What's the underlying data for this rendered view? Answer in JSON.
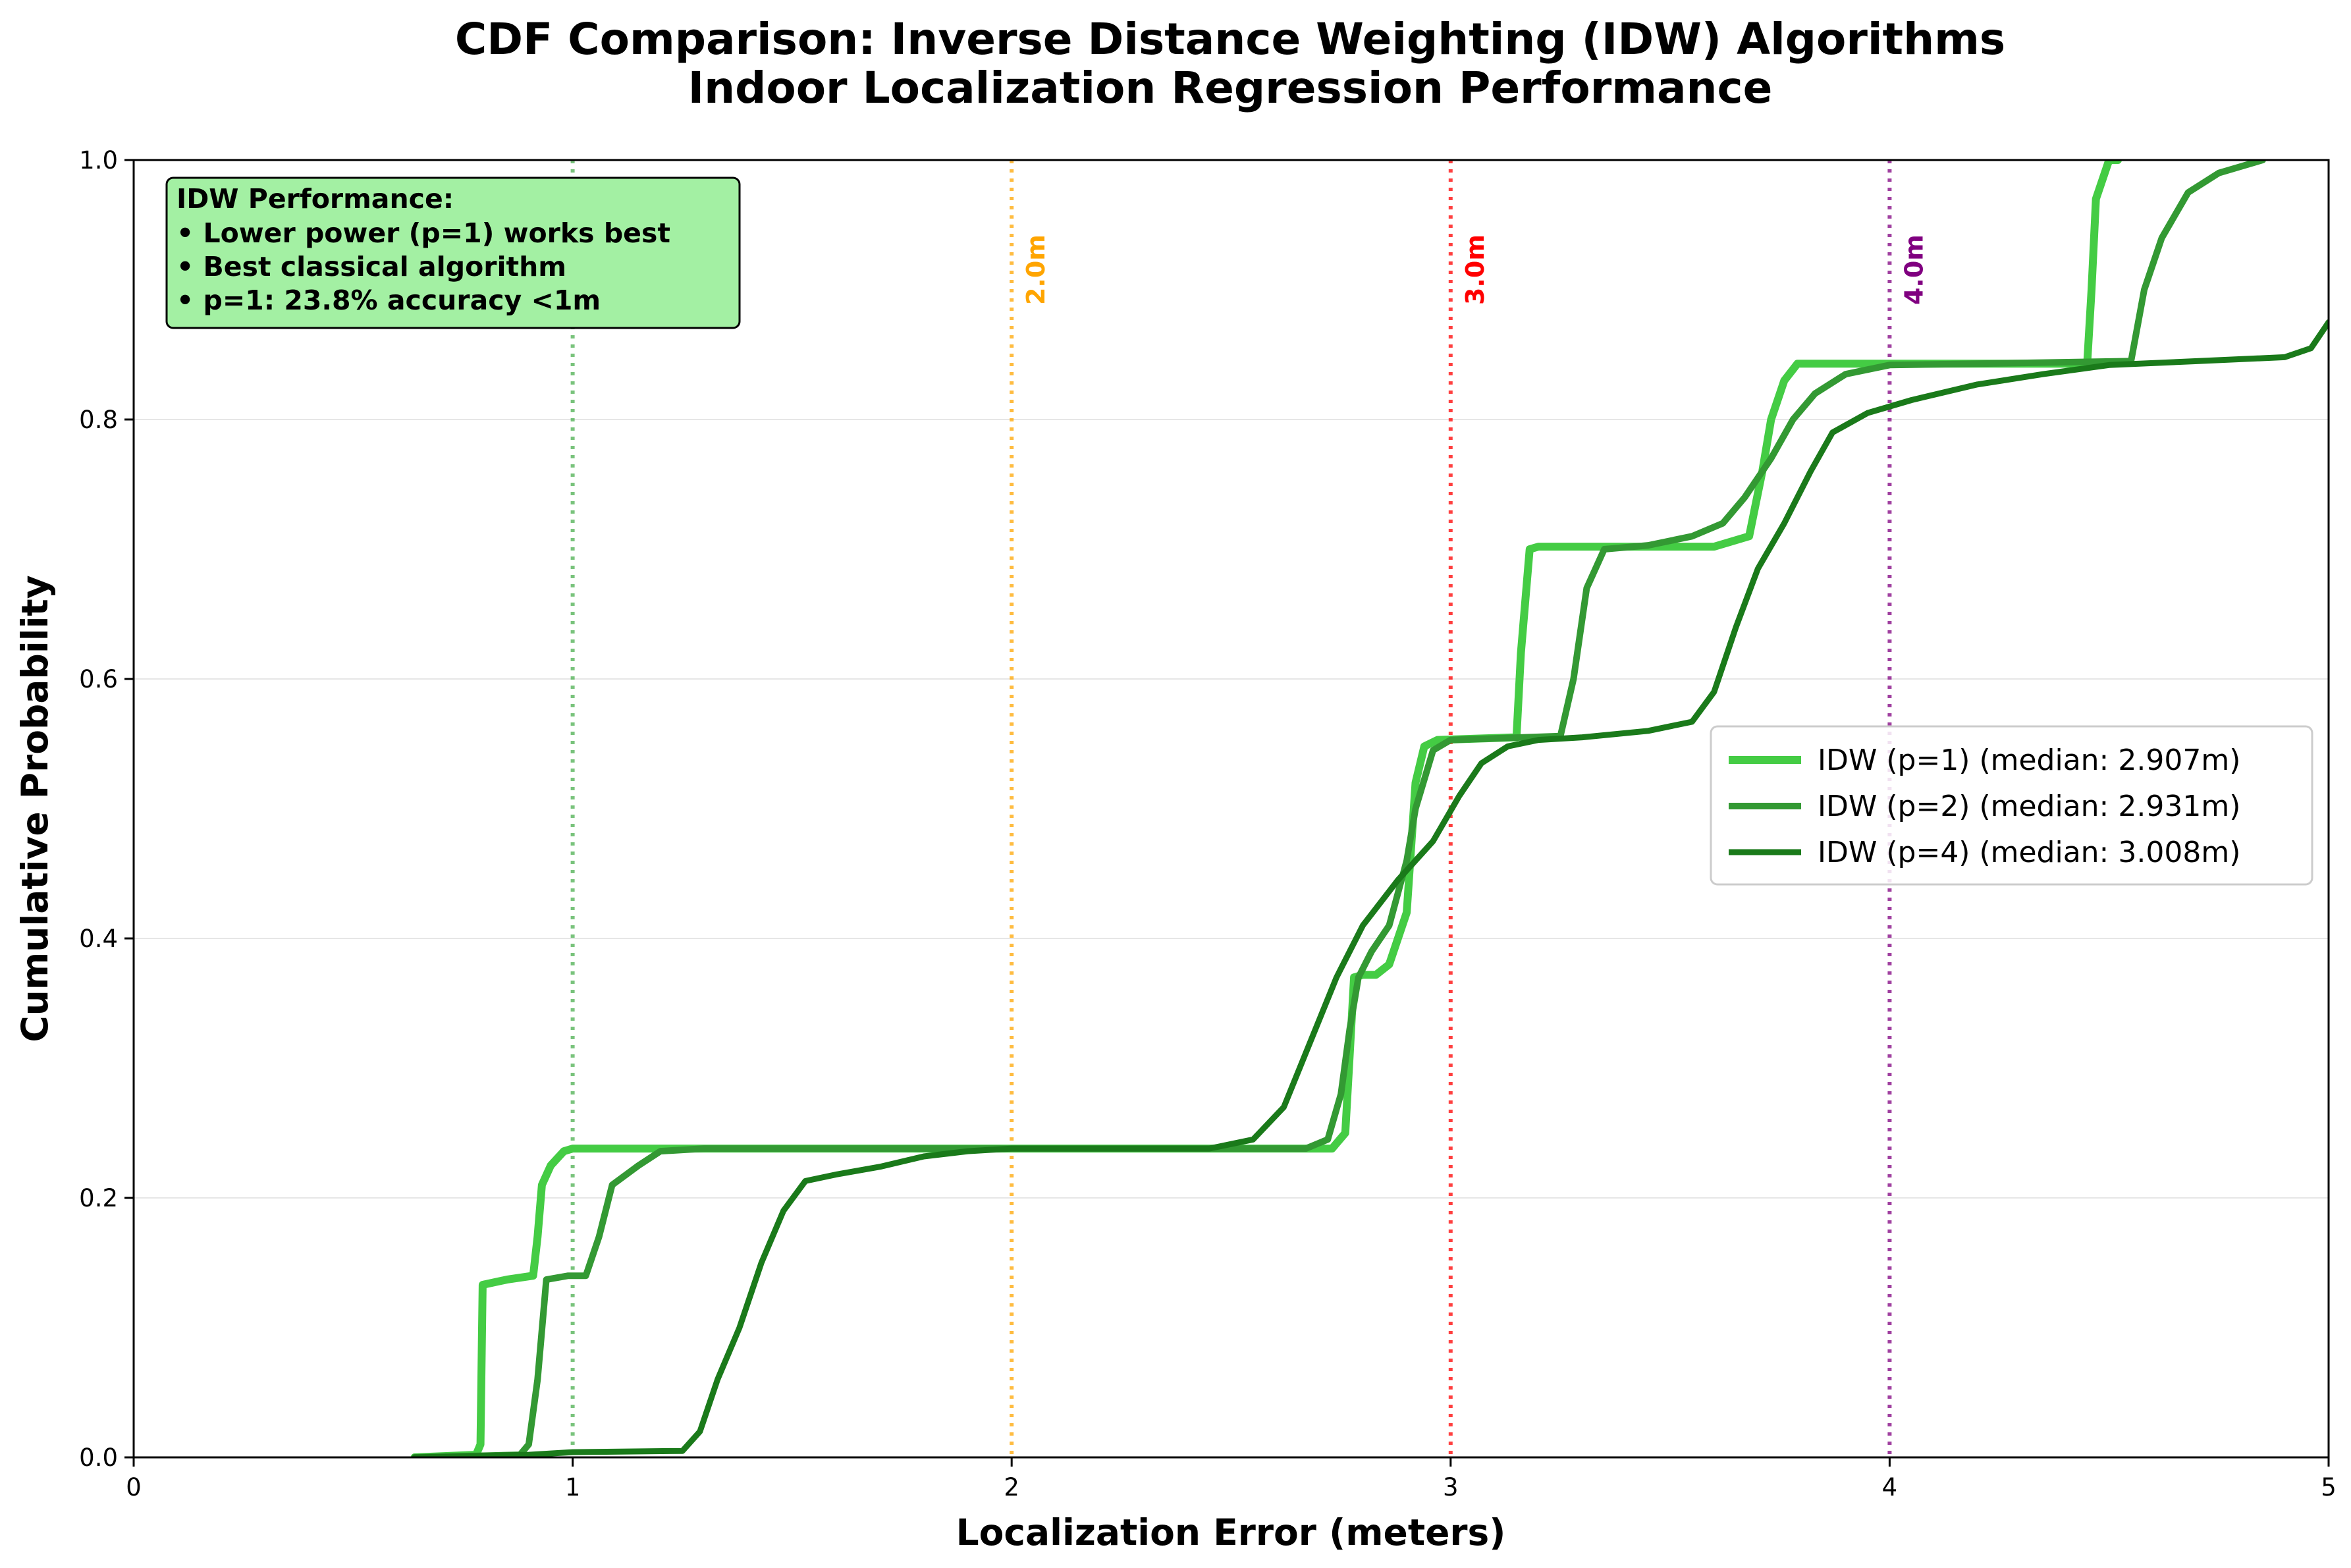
{
  "chart_data": {
    "type": "line",
    "title": "CDF Comparison: Inverse Distance Weighting (IDW) Algorithms",
    "subtitle": "Indoor Localization Regression Performance",
    "xlabel": "Localization Error (meters)",
    "ylabel": "Cumulative Probability",
    "xlim": [
      0,
      5
    ],
    "ylim": [
      0,
      1
    ],
    "x_ticks": [
      "0",
      "1",
      "2",
      "3",
      "4",
      "5"
    ],
    "y_ticks": [
      "0.0",
      "0.2",
      "0.4",
      "0.6",
      "0.8",
      "1.0"
    ],
    "grid": "horizontal",
    "legend_position": "center-right",
    "series": [
      {
        "name": "IDW (p=1) (median: 2.907m)",
        "color": "#44cc44",
        "points": [
          [
            0.64,
            0.0
          ],
          [
            0.78,
            0.002
          ],
          [
            0.79,
            0.01
          ],
          [
            0.795,
            0.133
          ],
          [
            0.85,
            0.137
          ],
          [
            0.91,
            0.14
          ],
          [
            0.92,
            0.17
          ],
          [
            0.93,
            0.21
          ],
          [
            0.95,
            0.225
          ],
          [
            0.98,
            0.236
          ],
          [
            1.0,
            0.238
          ],
          [
            2.73,
            0.238
          ],
          [
            2.76,
            0.25
          ],
          [
            2.77,
            0.31
          ],
          [
            2.78,
            0.37
          ],
          [
            2.8,
            0.372
          ],
          [
            2.83,
            0.372
          ],
          [
            2.86,
            0.38
          ],
          [
            2.9,
            0.42
          ],
          [
            2.91,
            0.47
          ],
          [
            2.92,
            0.52
          ],
          [
            2.94,
            0.548
          ],
          [
            2.97,
            0.553
          ],
          [
            3.15,
            0.555
          ],
          [
            3.16,
            0.62
          ],
          [
            3.18,
            0.7
          ],
          [
            3.2,
            0.702
          ],
          [
            3.6,
            0.702
          ],
          [
            3.68,
            0.71
          ],
          [
            3.71,
            0.76
          ],
          [
            3.73,
            0.8
          ],
          [
            3.76,
            0.83
          ],
          [
            3.79,
            0.843
          ],
          [
            4.45,
            0.843
          ],
          [
            4.46,
            0.9
          ],
          [
            4.47,
            0.97
          ],
          [
            4.5,
            1.0
          ],
          [
            4.52,
            1.0
          ]
        ]
      },
      {
        "name": "IDW (p=2) (median: 2.931m)",
        "color": "#339933",
        "points": [
          [
            0.64,
            0.0
          ],
          [
            0.88,
            0.002
          ],
          [
            0.9,
            0.01
          ],
          [
            0.92,
            0.06
          ],
          [
            0.94,
            0.137
          ],
          [
            0.99,
            0.14
          ],
          [
            1.03,
            0.14
          ],
          [
            1.06,
            0.17
          ],
          [
            1.09,
            0.21
          ],
          [
            1.15,
            0.225
          ],
          [
            1.2,
            0.236
          ],
          [
            1.3,
            0.238
          ],
          [
            2.67,
            0.238
          ],
          [
            2.72,
            0.245
          ],
          [
            2.75,
            0.28
          ],
          [
            2.77,
            0.33
          ],
          [
            2.79,
            0.37
          ],
          [
            2.82,
            0.39
          ],
          [
            2.86,
            0.41
          ],
          [
            2.9,
            0.46
          ],
          [
            2.92,
            0.5
          ],
          [
            2.96,
            0.545
          ],
          [
            3.0,
            0.553
          ],
          [
            3.25,
            0.556
          ],
          [
            3.28,
            0.6
          ],
          [
            3.31,
            0.67
          ],
          [
            3.35,
            0.7
          ],
          [
            3.45,
            0.703
          ],
          [
            3.55,
            0.71
          ],
          [
            3.62,
            0.72
          ],
          [
            3.67,
            0.74
          ],
          [
            3.73,
            0.77
          ],
          [
            3.78,
            0.8
          ],
          [
            3.83,
            0.82
          ],
          [
            3.9,
            0.835
          ],
          [
            4.0,
            0.842
          ],
          [
            4.2,
            0.843
          ],
          [
            4.55,
            0.845
          ],
          [
            4.58,
            0.9
          ],
          [
            4.62,
            0.94
          ],
          [
            4.68,
            0.975
          ],
          [
            4.75,
            0.99
          ],
          [
            4.85,
            1.0
          ]
        ]
      },
      {
        "name": "IDW (p=4) (median: 3.008m)",
        "color": "#1a7a1a",
        "points": [
          [
            0.64,
            0.0
          ],
          [
            0.9,
            0.002
          ],
          [
            1.0,
            0.004
          ],
          [
            1.25,
            0.005
          ],
          [
            1.29,
            0.02
          ],
          [
            1.33,
            0.06
          ],
          [
            1.38,
            0.1
          ],
          [
            1.43,
            0.15
          ],
          [
            1.48,
            0.19
          ],
          [
            1.53,
            0.213
          ],
          [
            1.6,
            0.218
          ],
          [
            1.7,
            0.224
          ],
          [
            1.8,
            0.232
          ],
          [
            1.9,
            0.236
          ],
          [
            2.0,
            0.238
          ],
          [
            2.45,
            0.238
          ],
          [
            2.55,
            0.245
          ],
          [
            2.62,
            0.27
          ],
          [
            2.68,
            0.32
          ],
          [
            2.74,
            0.37
          ],
          [
            2.8,
            0.41
          ],
          [
            2.88,
            0.445
          ],
          [
            2.96,
            0.475
          ],
          [
            3.02,
            0.51
          ],
          [
            3.07,
            0.535
          ],
          [
            3.13,
            0.548
          ],
          [
            3.2,
            0.553
          ],
          [
            3.3,
            0.555
          ],
          [
            3.45,
            0.56
          ],
          [
            3.55,
            0.567
          ],
          [
            3.6,
            0.59
          ],
          [
            3.65,
            0.64
          ],
          [
            3.7,
            0.685
          ],
          [
            3.76,
            0.72
          ],
          [
            3.82,
            0.76
          ],
          [
            3.87,
            0.79
          ],
          [
            3.95,
            0.805
          ],
          [
            4.05,
            0.815
          ],
          [
            4.2,
            0.827
          ],
          [
            4.35,
            0.835
          ],
          [
            4.5,
            0.842
          ],
          [
            4.7,
            0.845
          ],
          [
            4.9,
            0.848
          ],
          [
            4.96,
            0.855
          ],
          [
            5.0,
            0.875
          ]
        ]
      }
    ],
    "reference_lines": [
      {
        "x": 1.0,
        "label": "",
        "color": "#4caf50"
      },
      {
        "x": 2.0,
        "label": "2.0m",
        "color": "#ffa500"
      },
      {
        "x": 3.0,
        "label": "3.0m",
        "color": "#ff0000"
      },
      {
        "x": 4.0,
        "label": "4.0m",
        "color": "#800080"
      }
    ],
    "annotation": {
      "lines": [
        "IDW Performance:",
        "• Lower power (p=1) works best",
        "• Best classical algorithm",
        "• p=1: 23.8% accuracy <1m"
      ],
      "background": "#a3f0a3"
    }
  }
}
